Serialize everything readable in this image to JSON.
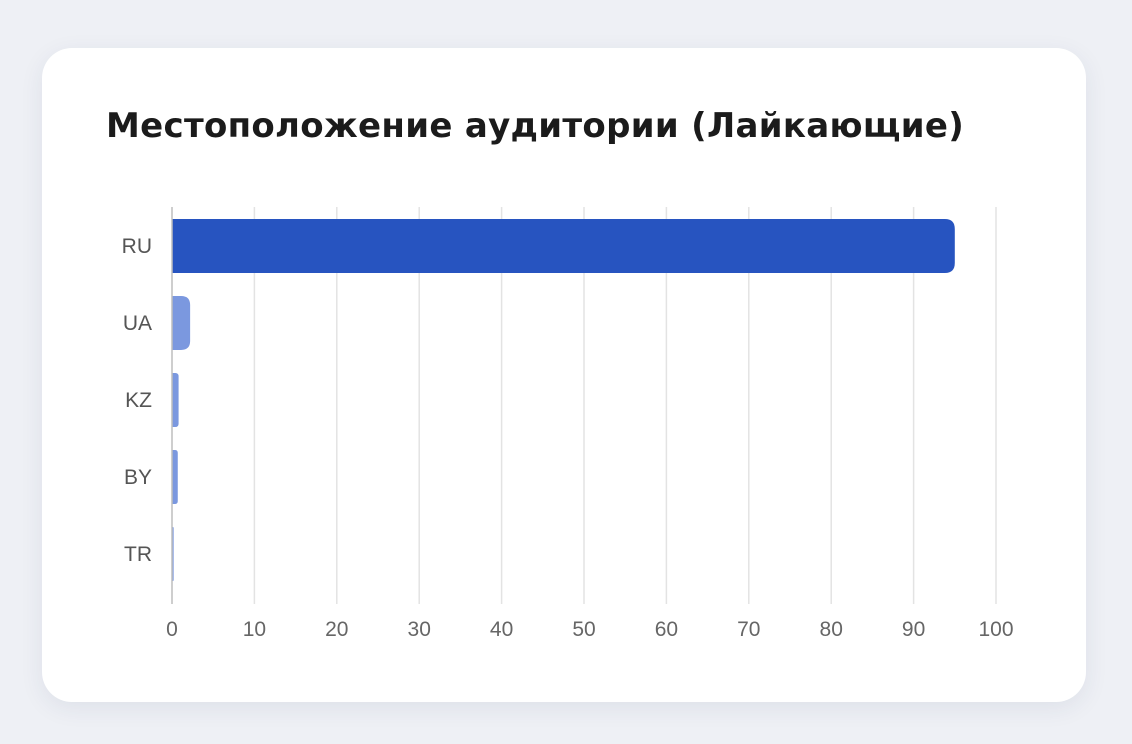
{
  "chart_data": {
    "type": "bar",
    "orientation": "horizontal",
    "title": "Местоположение аудитории (Лайкающие)",
    "categories": [
      "RU",
      "UA",
      "KZ",
      "BY",
      "TR"
    ],
    "values": [
      95,
      2.2,
      0.8,
      0.7,
      0.2
    ],
    "xlim": [
      0,
      100
    ],
    "xticks": [
      0,
      10,
      20,
      30,
      40,
      50,
      60,
      70,
      80,
      90,
      100
    ],
    "grid": true,
    "legend": "none",
    "colors": {
      "primary_bar": "#2754c0",
      "secondary_bar": "#7b98df",
      "grid": "#e3e3e3",
      "axis": "#bdbdbd",
      "background": "#eef0f5",
      "card": "#ffffff",
      "title": "#1b1b1b"
    }
  }
}
